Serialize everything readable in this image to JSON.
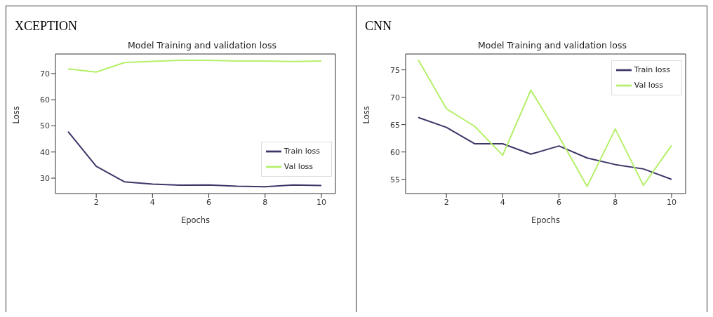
{
  "chart_data": [
    {
      "type": "line",
      "title": "XCEPTION",
      "subtitle": "Model Training and validation loss",
      "xlabel": "Epochs",
      "ylabel": "Loss",
      "x": [
        1,
        2,
        3,
        4,
        5,
        6,
        7,
        8,
        9,
        10
      ],
      "xlim": [
        0.55,
        10.5
      ],
      "xticks": [
        2,
        4,
        6,
        8,
        10
      ],
      "ylim": [
        24.1,
        77.5
      ],
      "yticks": [
        30,
        40,
        50,
        60,
        70
      ],
      "grid": false,
      "legend": "center right",
      "marker": "none",
      "series": [
        {
          "name": "Train loss",
          "color": "#3b3768",
          "values": [
            47.8,
            34.5,
            28.6,
            27.7,
            27.3,
            27.4,
            26.9,
            26.7,
            27.4,
            27.2
          ]
        },
        {
          "name": "Val loss",
          "color": "#b5f06a",
          "values": [
            71.8,
            70.6,
            74.2,
            74.7,
            75.1,
            75.1,
            74.8,
            74.8,
            74.6,
            74.8
          ]
        }
      ]
    },
    {
      "type": "line",
      "title": "CNN",
      "subtitle": "Model Training and validation loss",
      "xlabel": "Epochs",
      "ylabel": "Loss",
      "x": [
        1,
        2,
        3,
        4,
        5,
        6,
        7,
        8,
        9,
        10
      ],
      "xlim": [
        0.55,
        10.5
      ],
      "xticks": [
        2,
        4,
        6,
        8,
        10
      ],
      "ylim": [
        52.4,
        77.9
      ],
      "yticks": [
        55,
        60,
        65,
        70,
        75
      ],
      "grid": false,
      "legend": "top right",
      "marker": "none",
      "series": [
        {
          "name": "Train loss",
          "color": "#3b3768",
          "values": [
            66.3,
            64.5,
            61.5,
            61.5,
            59.6,
            61.1,
            58.9,
            57.7,
            56.9,
            55.0
          ]
        },
        {
          "name": "Val loss",
          "color": "#b5f06a",
          "values": [
            76.8,
            67.9,
            64.7,
            59.4,
            71.3,
            62.8,
            53.7,
            64.2,
            53.9,
            61.2
          ]
        }
      ]
    }
  ]
}
